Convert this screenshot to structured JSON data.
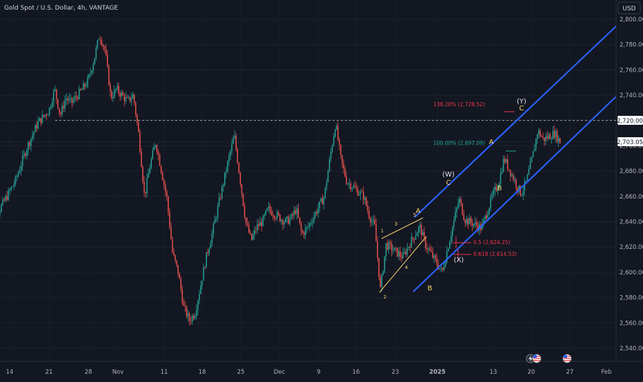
{
  "header": {
    "title": "Gold Spot / U.S. Dollar, 4h, VANTAGE",
    "currency": "USD"
  },
  "chart_data": {
    "type": "candlestick",
    "symbol": "Gold Spot / U.S. Dollar",
    "interval": "4h",
    "broker": "VANTAGE",
    "ylim": [
      2530,
      2810
    ],
    "y_ticks": [
      2540,
      2560,
      2580,
      2600,
      2620,
      2640,
      2660,
      2680,
      2700,
      2720,
      2740,
      2760,
      2780,
      2800
    ],
    "y_tick_labels": [
      "2,540.00",
      "2,560.00",
      "2,580.00",
      "2,600.00",
      "2,620.00",
      "2,640.00",
      "2,660.00",
      "2,680.00",
      "2,700.00",
      "2,720.00",
      "2,740.00",
      "2,760.00",
      "2,780.00",
      "2,800.00"
    ],
    "x_ticks": [
      "14",
      "21",
      "28",
      "Nov",
      "11",
      "18",
      "25",
      "Dec",
      "9",
      "16",
      "23",
      "2025",
      "13",
      "20",
      "27",
      "Feb"
    ],
    "price_path": [
      [
        "2024-10-10",
        2620
      ],
      [
        "2024-10-12",
        2648
      ],
      [
        "2024-10-15",
        2672
      ],
      [
        "2024-10-17",
        2698
      ],
      [
        "2024-10-19",
        2718
      ],
      [
        "2024-10-21",
        2728
      ],
      [
        "2024-10-22",
        2745
      ],
      [
        "2024-10-23",
        2724
      ],
      [
        "2024-10-24",
        2738
      ],
      [
        "2024-10-25",
        2734
      ],
      [
        "2024-10-27",
        2745
      ],
      [
        "2024-10-28",
        2752
      ],
      [
        "2024-10-29",
        2768
      ],
      [
        "2024-10-30",
        2788
      ],
      [
        "2024-10-31",
        2775
      ],
      [
        "2024-11-01",
        2738
      ],
      [
        "2024-11-02",
        2745
      ],
      [
        "2024-11-04",
        2735
      ],
      [
        "2024-11-05",
        2740
      ],
      [
        "2024-11-06",
        2708
      ],
      [
        "2024-11-07",
        2660
      ],
      [
        "2024-11-08",
        2685
      ],
      [
        "2024-11-09",
        2703
      ],
      [
        "2024-11-11",
        2658
      ],
      [
        "2024-11-12",
        2615
      ],
      [
        "2024-11-13",
        2600
      ],
      [
        "2024-11-14",
        2572
      ],
      [
        "2024-11-15",
        2562
      ],
      [
        "2024-11-16",
        2568
      ],
      [
        "2024-11-18",
        2612
      ],
      [
        "2024-11-19",
        2630
      ],
      [
        "2024-11-20",
        2650
      ],
      [
        "2024-11-21",
        2670
      ],
      [
        "2024-11-22",
        2690
      ],
      [
        "2024-11-23",
        2708
      ],
      [
        "2024-11-25",
        2640
      ],
      [
        "2024-11-26",
        2625
      ],
      [
        "2024-11-27",
        2636
      ],
      [
        "2024-11-28",
        2640
      ],
      [
        "2024-11-29",
        2650
      ],
      [
        "2024-12-02",
        2640
      ],
      [
        "2024-12-03",
        2642
      ],
      [
        "2024-12-04",
        2650
      ],
      [
        "2024-12-05",
        2630
      ],
      [
        "2024-12-06",
        2635
      ],
      [
        "2024-12-09",
        2660
      ],
      [
        "2024-12-10",
        2690
      ],
      [
        "2024-12-11",
        2718
      ],
      [
        "2024-12-12",
        2688
      ],
      [
        "2024-12-13",
        2672
      ],
      [
        "2024-12-16",
        2660
      ],
      [
        "2024-12-17",
        2645
      ],
      [
        "2024-12-18",
        2636
      ],
      [
        "2024-12-19",
        2586
      ],
      [
        "2024-12-20",
        2622
      ],
      [
        "2024-12-23",
        2612
      ],
      [
        "2024-12-24",
        2621
      ],
      [
        "2024-12-26",
        2636
      ],
      [
        "2024-12-27",
        2622
      ],
      [
        "2024-12-30",
        2600
      ],
      [
        "2024-12-31",
        2620
      ],
      [
        "2025-01-02",
        2658
      ],
      [
        "2025-01-03",
        2642
      ],
      [
        "2025-01-06",
        2635
      ],
      [
        "2025-01-07",
        2648
      ],
      [
        "2025-01-08",
        2661
      ],
      [
        "2025-01-09",
        2670
      ],
      [
        "2025-01-10",
        2690
      ],
      [
        "2025-01-13",
        2662
      ],
      [
        "2025-01-14",
        2672
      ],
      [
        "2025-01-15",
        2690
      ],
      [
        "2025-01-16",
        2712
      ],
      [
        "2025-01-17",
        2705
      ],
      [
        "2025-01-19",
        2710
      ],
      [
        "2025-01-20",
        2703
      ]
    ],
    "reference_prices": {
      "horizontal_level": 2720.0,
      "last_price": 2703.05
    },
    "channel": {
      "color": "#2962ff"
    },
    "elliott_labels": [
      {
        "text": "(Y)",
        "color": "#e1e3e8"
      },
      {
        "text": "C",
        "color": "#f5d76e"
      },
      {
        "text": "(W)",
        "color": "#e1e3e8"
      },
      {
        "text": "C",
        "color": "#f5d76e"
      },
      {
        "text": "(X)",
        "color": "#e1e3e8"
      },
      {
        "text": "A",
        "color": "#f5d76e"
      },
      {
        "text": "B",
        "color": "#f5d76e"
      },
      {
        "text": "A",
        "color": "#f5d76e"
      },
      {
        "text": "B",
        "color": "#f5d76e"
      },
      {
        "text": "1",
        "color": "#f5d76e"
      },
      {
        "text": "2",
        "color": "#f5d76e"
      },
      {
        "text": "3",
        "color": "#f5d76e"
      },
      {
        "text": "4",
        "color": "#f5d76e"
      },
      {
        "text": "5",
        "color": "#f5d76e"
      }
    ],
    "fib_annotations": [
      {
        "text": "138.20% (2,728.52)",
        "price": 2728.52,
        "color": "#f23645"
      },
      {
        "text": "100.00% (2,697.09)",
        "price": 2697.09,
        "color": "#22ab94"
      },
      {
        "text": "0.5 (2,624.25)",
        "price": 2624.25,
        "color": "#f23645"
      },
      {
        "text": "0.618 (2,614.53)",
        "price": 2614.53,
        "color": "#f23645"
      }
    ],
    "colors": {
      "up": "#26a69a",
      "down": "#ef5350",
      "background": "#131722",
      "text": "#b2b5be"
    }
  },
  "price_labels": {
    "level": "2,720.00",
    "last": "2,703.05"
  },
  "event_icons": [
    "flash-icon",
    "us-flag-icon",
    "us-flag-icon"
  ]
}
